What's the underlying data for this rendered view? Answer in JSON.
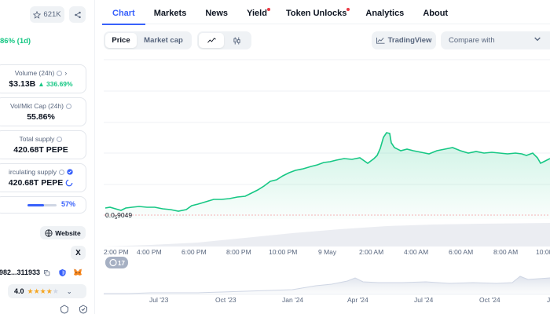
{
  "sidebar": {
    "watchlist_count": "621K",
    "price_change": "86% (1d)",
    "volume": {
      "label": "Volume (24h)",
      "value": "$3.13B",
      "change": "336.69%"
    },
    "vol_mkt_cap": {
      "label": "Vol/Mkt Cap (24h)",
      "value": "55.86%"
    },
    "total_supply": {
      "label": "Total supply",
      "value": "420.68T PEPE"
    },
    "circulating_supply": {
      "label": "irculating supply",
      "value": "420.68T PEPE"
    },
    "progress": {
      "percent": "57%",
      "fraction": 0.57
    },
    "website_label": "Website",
    "x_label": "X",
    "contract": "982...311933",
    "rating": {
      "value": "4.0",
      "stars": 4
    }
  },
  "tabs": [
    {
      "label": "Chart",
      "active": true,
      "dot": false
    },
    {
      "label": "Markets",
      "active": false,
      "dot": false
    },
    {
      "label": "News",
      "active": false,
      "dot": false
    },
    {
      "label": "Yield",
      "active": false,
      "dot": true
    },
    {
      "label": "Token Unlocks",
      "active": false,
      "dot": true
    },
    {
      "label": "Analytics",
      "active": false,
      "dot": false
    },
    {
      "label": "About",
      "active": false,
      "dot": false
    }
  ],
  "toolbar": {
    "price_label": "Price",
    "market_cap_label": "Market cap",
    "tradingview_label": "TradingView",
    "compare_placeholder": "Compare with"
  },
  "chart": {
    "min_label_prefix": "0.0",
    "min_label_sub": "5",
    "min_label_suffix": "9049",
    "x_labels": [
      "2:00 PM",
      "4:00 PM",
      "6:00 PM",
      "8:00 PM",
      "10:00 PM",
      "9 May",
      "2:00 AM",
      "4:00 AM",
      "6:00 AM",
      "8:00 AM",
      "10:00"
    ],
    "range_labels": [
      "Jul '23",
      "Oct '23",
      "Jan '24",
      "Apr '24",
      "Jul '24",
      "Oct '24",
      "J"
    ],
    "events_badge": "17"
  },
  "colors": {
    "accent": "#3861fb",
    "up": "#16c784",
    "alert_dot": "#ea3943"
  },
  "icons": [
    "star-icon",
    "share-icon",
    "info-icon",
    "chevron-right-icon",
    "verified-icon",
    "loading-ring-icon",
    "globe-icon",
    "x-logo-icon",
    "copy-icon",
    "shield-icon",
    "metamask-icon",
    "chevron-down-icon",
    "line-chart-icon",
    "candlestick-icon",
    "tradingview-icon",
    "clock-icon"
  ]
}
